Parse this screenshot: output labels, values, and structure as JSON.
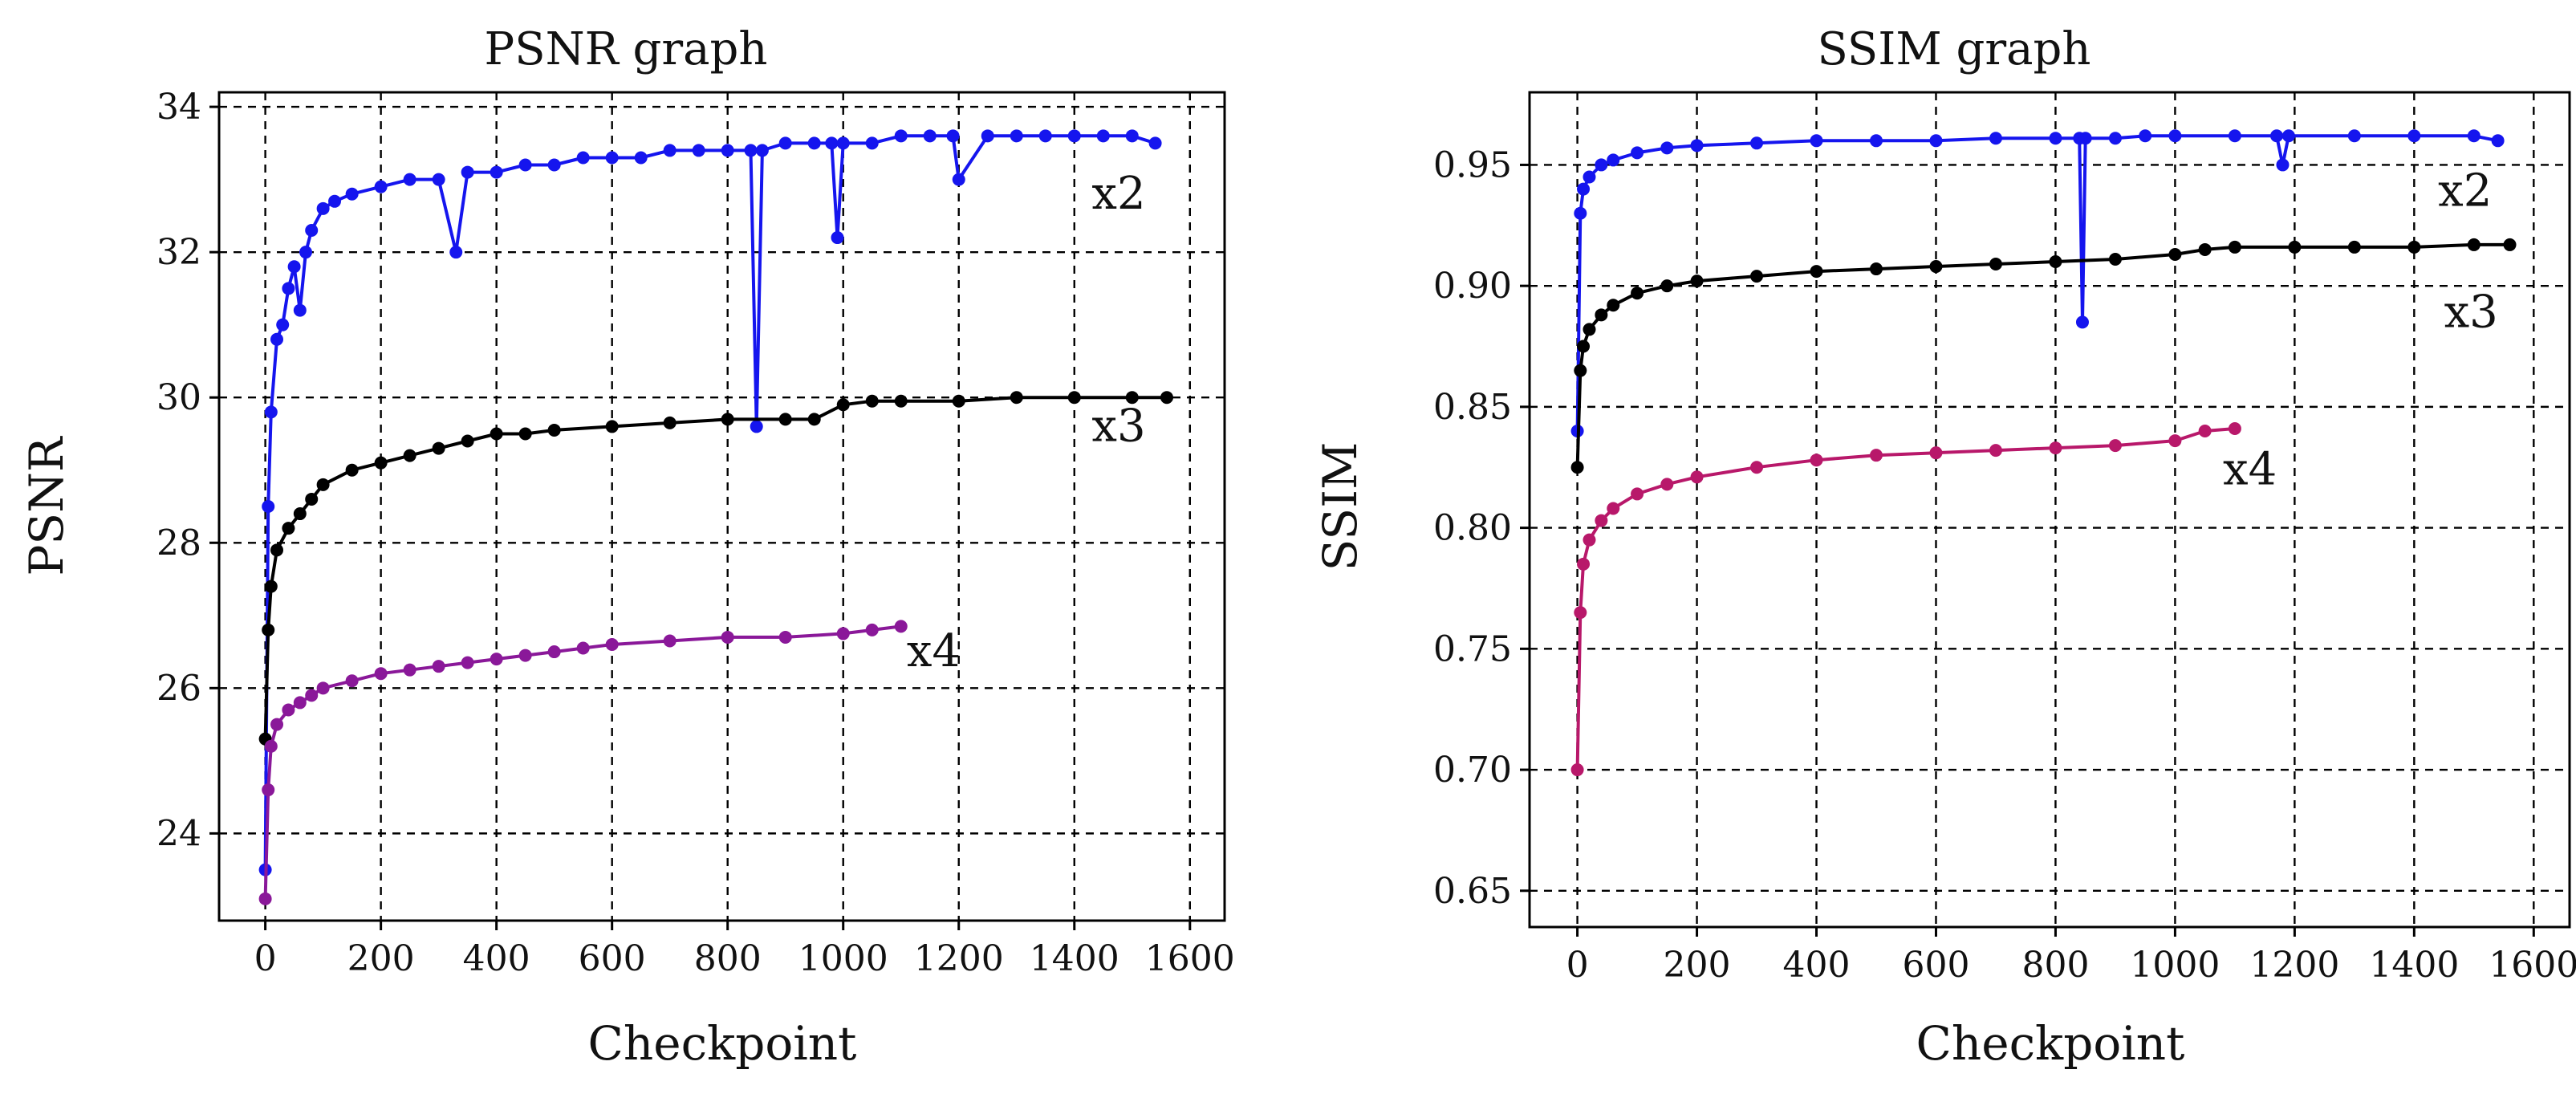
{
  "chart_data": [
    {
      "type": "line",
      "title": "PSNR graph",
      "xlabel": "Checkpoint",
      "ylabel": "PSNR",
      "xlim": [
        -80,
        1660
      ],
      "ylim": [
        22.8,
        34.2
      ],
      "xticks": [
        0,
        200,
        400,
        600,
        800,
        1000,
        1200,
        1400,
        1600
      ],
      "yticks": [
        24,
        26,
        28,
        30,
        32,
        34
      ],
      "xtick_labels": [
        "0",
        "200",
        "400",
        "600",
        "800",
        "1000",
        "1200",
        "1400",
        "1600"
      ],
      "ytick_labels": [
        "24",
        "26",
        "28",
        "30",
        "32",
        "34"
      ],
      "grid": true,
      "series": [
        {
          "name": "x2",
          "color": "#1515ee",
          "label_at": [
            1430,
            32.6
          ],
          "x": [
            0,
            5,
            10,
            20,
            30,
            40,
            50,
            60,
            70,
            80,
            100,
            120,
            150,
            200,
            250,
            300,
            330,
            350,
            400,
            450,
            500,
            550,
            600,
            650,
            700,
            750,
            800,
            840,
            850,
            860,
            900,
            950,
            980,
            990,
            1000,
            1050,
            1100,
            1150,
            1190,
            1200,
            1250,
            1300,
            1350,
            1400,
            1450,
            1500,
            1540
          ],
          "y": [
            23.5,
            28.5,
            29.8,
            30.8,
            31.0,
            31.5,
            31.8,
            31.2,
            32.0,
            32.3,
            32.6,
            32.7,
            32.8,
            32.9,
            33.0,
            33.0,
            32.0,
            33.1,
            33.1,
            33.2,
            33.2,
            33.3,
            33.3,
            33.3,
            33.4,
            33.4,
            33.4,
            33.4,
            29.6,
            33.4,
            33.5,
            33.5,
            33.5,
            32.2,
            33.5,
            33.5,
            33.6,
            33.6,
            33.6,
            33.0,
            33.6,
            33.6,
            33.6,
            33.6,
            33.6,
            33.6,
            33.5
          ]
        },
        {
          "name": "x3",
          "color": "#000000",
          "label_at": [
            1430,
            29.4
          ],
          "x": [
            0,
            5,
            10,
            20,
            40,
            60,
            80,
            100,
            150,
            200,
            250,
            300,
            350,
            400,
            450,
            500,
            600,
            700,
            800,
            900,
            950,
            1000,
            1050,
            1100,
            1200,
            1300,
            1400,
            1500,
            1560
          ],
          "y": [
            25.3,
            26.8,
            27.4,
            27.9,
            28.2,
            28.4,
            28.6,
            28.8,
            29.0,
            29.1,
            29.2,
            29.3,
            29.4,
            29.5,
            29.5,
            29.55,
            29.6,
            29.65,
            29.7,
            29.7,
            29.7,
            29.9,
            29.95,
            29.95,
            29.95,
            30.0,
            30.0,
            30.0,
            30.0
          ]
        },
        {
          "name": "x4",
          "color": "#8a1899",
          "label_at": [
            1110,
            26.3
          ],
          "x": [
            0,
            5,
            10,
            20,
            40,
            60,
            80,
            100,
            150,
            200,
            250,
            300,
            350,
            400,
            450,
            500,
            550,
            600,
            700,
            800,
            900,
            1000,
            1050,
            1100
          ],
          "y": [
            23.1,
            24.6,
            25.2,
            25.5,
            25.7,
            25.8,
            25.9,
            26.0,
            26.1,
            26.2,
            26.25,
            26.3,
            26.35,
            26.4,
            26.45,
            26.5,
            26.55,
            26.6,
            26.65,
            26.7,
            26.7,
            26.75,
            26.8,
            26.85
          ]
        }
      ]
    },
    {
      "type": "line",
      "title": "SSIM graph",
      "xlabel": "Checkpoint",
      "ylabel": "SSIM",
      "xlim": [
        -80,
        1660
      ],
      "ylim": [
        0.635,
        0.98
      ],
      "xticks": [
        0,
        200,
        400,
        600,
        800,
        1000,
        1200,
        1400,
        1600
      ],
      "yticks": [
        0.65,
        0.7,
        0.75,
        0.8,
        0.85,
        0.9,
        0.95
      ],
      "xtick_labels": [
        "0",
        "200",
        "400",
        "600",
        "800",
        "1000",
        "1200",
        "1400",
        "1600"
      ],
      "ytick_labels": [
        "0.65",
        "0.70",
        "0.75",
        "0.80",
        "0.85",
        "0.90",
        "0.95"
      ],
      "grid": true,
      "series": [
        {
          "name": "x2",
          "color": "#1515ee",
          "label_at": [
            1440,
            0.933
          ],
          "x": [
            0,
            5,
            10,
            20,
            40,
            60,
            100,
            150,
            200,
            300,
            400,
            500,
            600,
            700,
            800,
            840,
            845,
            850,
            900,
            950,
            1000,
            1100,
            1170,
            1180,
            1190,
            1300,
            1400,
            1500,
            1540
          ],
          "y": [
            0.84,
            0.93,
            0.94,
            0.945,
            0.95,
            0.952,
            0.955,
            0.957,
            0.958,
            0.959,
            0.96,
            0.96,
            0.96,
            0.961,
            0.961,
            0.961,
            0.885,
            0.961,
            0.961,
            0.962,
            0.962,
            0.962,
            0.962,
            0.95,
            0.962,
            0.962,
            0.962,
            0.962,
            0.96
          ]
        },
        {
          "name": "x3",
          "color": "#000000",
          "label_at": [
            1450,
            0.883
          ],
          "x": [
            0,
            5,
            10,
            20,
            40,
            60,
            100,
            150,
            200,
            300,
            400,
            500,
            600,
            700,
            800,
            900,
            1000,
            1050,
            1100,
            1200,
            1300,
            1400,
            1500,
            1560
          ],
          "y": [
            0.825,
            0.865,
            0.875,
            0.882,
            0.888,
            0.892,
            0.897,
            0.9,
            0.902,
            0.904,
            0.906,
            0.907,
            0.908,
            0.909,
            0.91,
            0.911,
            0.913,
            0.915,
            0.916,
            0.916,
            0.916,
            0.916,
            0.917,
            0.917
          ]
        },
        {
          "name": "x4",
          "color": "#b8186a",
          "label_at": [
            1080,
            0.818
          ],
          "x": [
            0,
            5,
            10,
            20,
            40,
            60,
            100,
            150,
            200,
            300,
            400,
            500,
            600,
            700,
            800,
            900,
            1000,
            1050,
            1100
          ],
          "y": [
            0.7,
            0.765,
            0.785,
            0.795,
            0.803,
            0.808,
            0.814,
            0.818,
            0.821,
            0.825,
            0.828,
            0.83,
            0.831,
            0.832,
            0.833,
            0.834,
            0.836,
            0.84,
            0.841
          ]
        }
      ]
    }
  ]
}
